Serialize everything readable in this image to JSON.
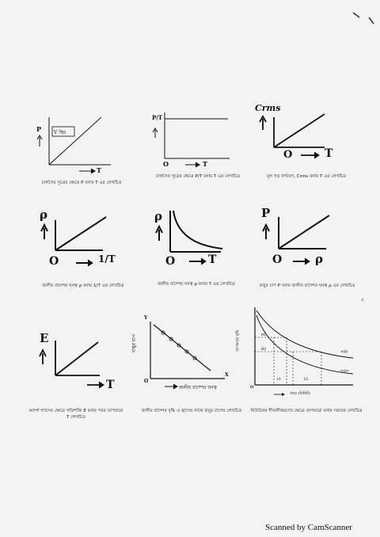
{
  "graphs": [
    {
      "id": "g1",
      "y_label": "P",
      "x_label": "T",
      "box_label": "V স্থির",
      "caption": "চার্লসের সূত্রের ক্ষেত্রে P বনাম T এর লেখচিত্র"
    },
    {
      "id": "g2",
      "y_label": "P/T",
      "x_label": "T",
      "origin": "O",
      "caption": "চার্লসের সূত্রের ক্ষেত্রে P/T বনাম T এর লেখচিত্র"
    },
    {
      "id": "g3",
      "y_label": "Crms",
      "x_label": "T",
      "origin": "O",
      "caption": "মূল গড় বর্গবেগ, Crms বনাম T এর লেখচিত্র"
    },
    {
      "id": "g4",
      "y_label": "ρ",
      "x_label": "1/T",
      "origin": "O",
      "caption": "জলীয় বাষ্পের ঘনত্ব ρ বনাম 1/T এর লেখচিত্র"
    },
    {
      "id": "g5",
      "y_label": "ρ",
      "x_label": "T",
      "origin": "O",
      "caption": "জলীয় বাষ্পের ঘনত্ব ρ বনাম T এর লেখচিত্র"
    },
    {
      "id": "g6",
      "y_label": "P",
      "x_label": "ρ",
      "origin": "O",
      "caption": "বায়ুর চাপ P বনাম জলীয় বাষ্পের ঘনত্ব ρ এর লেখচিত্র"
    },
    {
      "id": "g7",
      "y_label": "E",
      "x_label": "T",
      "caption": "আদর্শ গ্যাসের ক্ষেত্রে গতিশক্তি E বনাম পরম তাপমাত্রা T লেখচিত্র"
    },
    {
      "id": "g8",
      "y_label": "বায়ুর চাপ",
      "x_label": "জলীয় বাষ্পের ঘনত্ব",
      "axis_y_letter": "Y",
      "axis_x_letter": "X",
      "origin": "O",
      "caption": "জলীয় বাষ্পের বৃদ্ধি ও হ্রাসের সাথে বায়ুর চাপের লেখচিত্র"
    },
    {
      "id": "g9",
      "y_label": "তাপমাত্রা বৃদ্ধি",
      "x_label": "সময় (মিনিট)",
      "curve1": "পানি",
      "curve2": "তরল",
      "theta1": "θ1",
      "theta2": "θ2",
      "t1": "t1",
      "t2": "t2",
      "origin": "O",
      "caption": "নিউটনের শীতলীকরণের ক্ষেত্রে তাপমাত্রা বনাম সময়ের লেখচিত্র"
    }
  ],
  "footer": "Scanned by CamScanner"
}
